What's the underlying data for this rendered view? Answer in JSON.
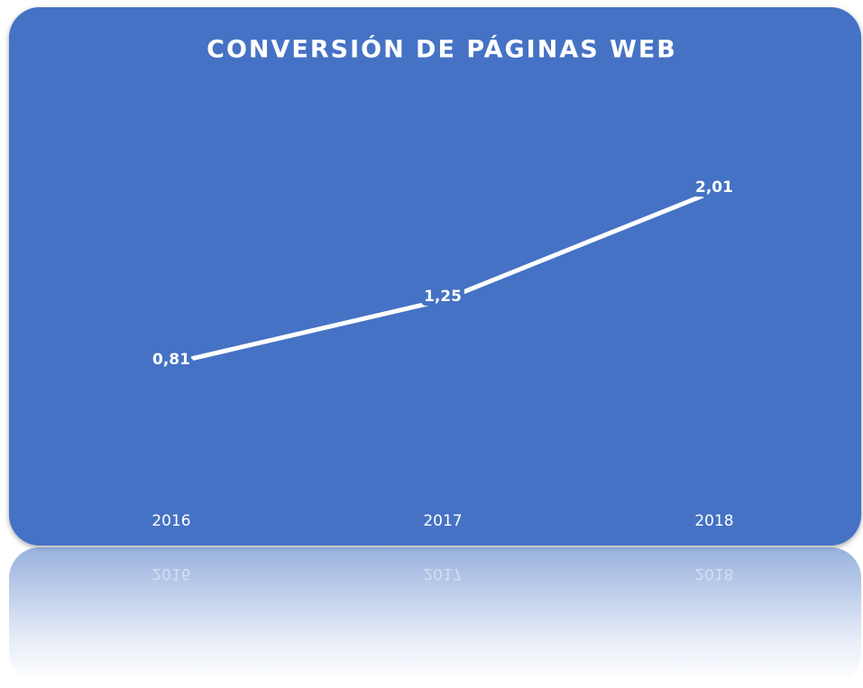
{
  "chart_data": {
    "type": "line",
    "title": "CONVERSIÓN DE PÁGINAS WEB",
    "categories": [
      "2016",
      "2017",
      "2018"
    ],
    "series": [
      {
        "name": null,
        "color": "#ffffff",
        "values": [
          0.81,
          1.25,
          2.01
        ],
        "value_labels": [
          "0,81",
          "1,25",
          "2,01"
        ]
      }
    ],
    "background": "#4472c4"
  }
}
